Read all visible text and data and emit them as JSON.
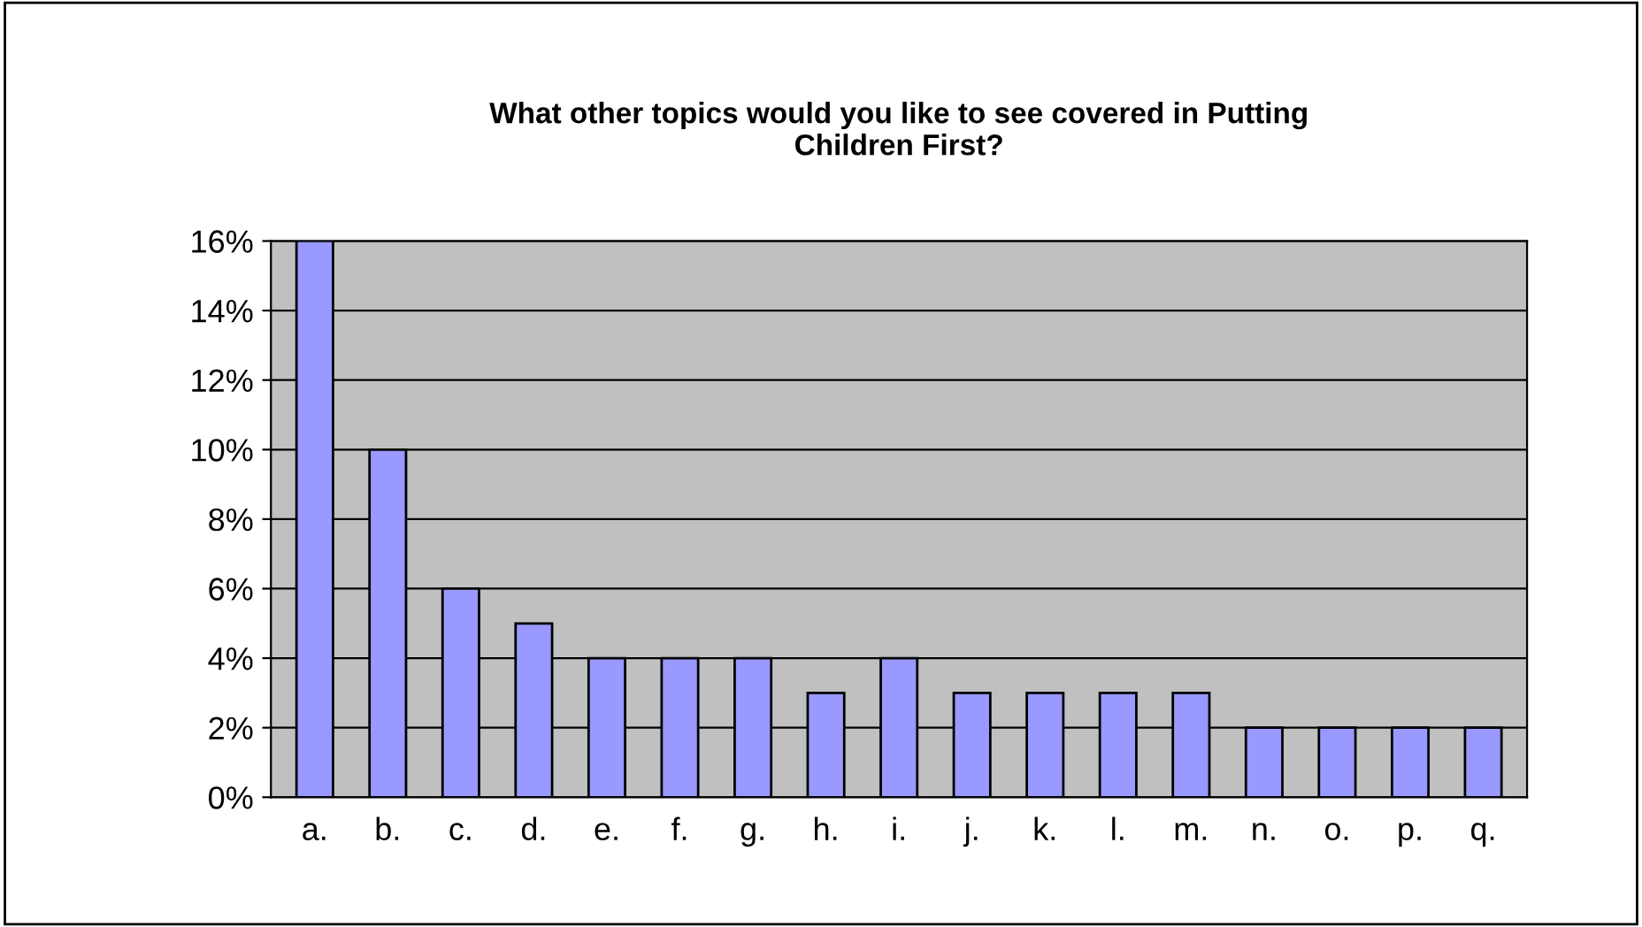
{
  "chart_data": {
    "type": "bar",
    "title": "What other topics would you like to see covered in Putting\nChildren First?",
    "categories": [
      "a.",
      "b.",
      "c.",
      "d.",
      "e.",
      "f.",
      "g.",
      "h.",
      "i.",
      "j.",
      "k.",
      "l.",
      "m.",
      "n.",
      "o.",
      "p.",
      "q."
    ],
    "values": [
      16,
      10,
      6,
      5,
      4,
      4,
      4,
      3,
      4,
      3,
      3,
      3,
      3,
      2,
      2,
      2,
      2
    ],
    "color": "#9999ff",
    "ylim": [
      0,
      16
    ],
    "yticks": [
      {
        "value": 0,
        "label": "0%"
      },
      {
        "value": 2,
        "label": "2%"
      },
      {
        "value": 4,
        "label": "4%"
      },
      {
        "value": 6,
        "label": "6%"
      },
      {
        "value": 8,
        "label": "8%"
      },
      {
        "value": 10,
        "label": "10%"
      },
      {
        "value": 12,
        "label": "12%"
      },
      {
        "value": 14,
        "label": "14%"
      },
      {
        "value": 16,
        "label": "16%"
      }
    ],
    "grid": "y"
  }
}
